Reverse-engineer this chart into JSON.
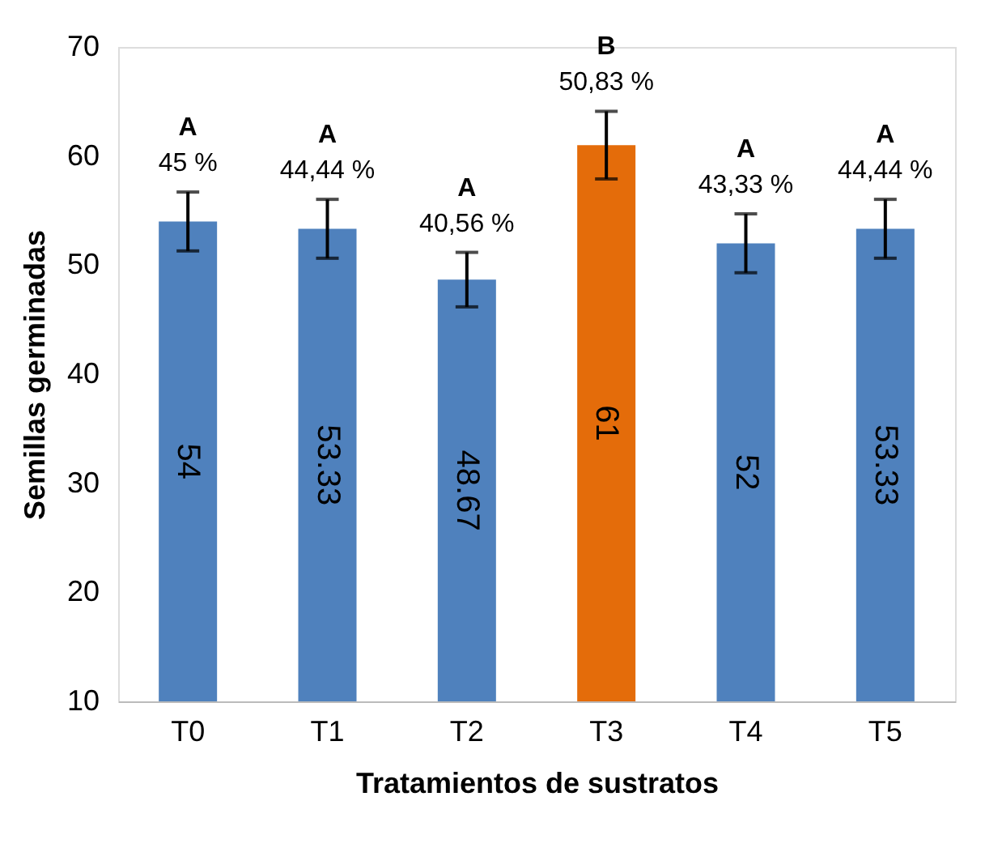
{
  "chart_data": {
    "type": "bar",
    "xlabel": "Tratamientos de sustratos",
    "ylabel": "Semillas germinadas",
    "categories": [
      "T0",
      "T1",
      "T2",
      "T3",
      "T4",
      "T5"
    ],
    "values": [
      54,
      53.33,
      48.67,
      61,
      52,
      53.33
    ],
    "colors": [
      "#4f81bd",
      "#4f81bd",
      "#4f81bd",
      "#e46c0a",
      "#4f81bd",
      "#4f81bd"
    ],
    "errors": [
      2.7,
      2.7,
      2.5,
      3.1,
      2.7,
      2.7
    ],
    "data_labels": true,
    "ylim": [
      10,
      70
    ],
    "yticks": [
      10,
      20,
      30,
      40,
      50,
      60,
      70
    ],
    "grid": false,
    "annotations": [
      "A",
      "45 %",
      "A",
      "44,44 %",
      "A",
      "40,56 %",
      "B",
      "50,83 %",
      "A",
      "43,33 %",
      "A",
      "44,44 %"
    ]
  }
}
